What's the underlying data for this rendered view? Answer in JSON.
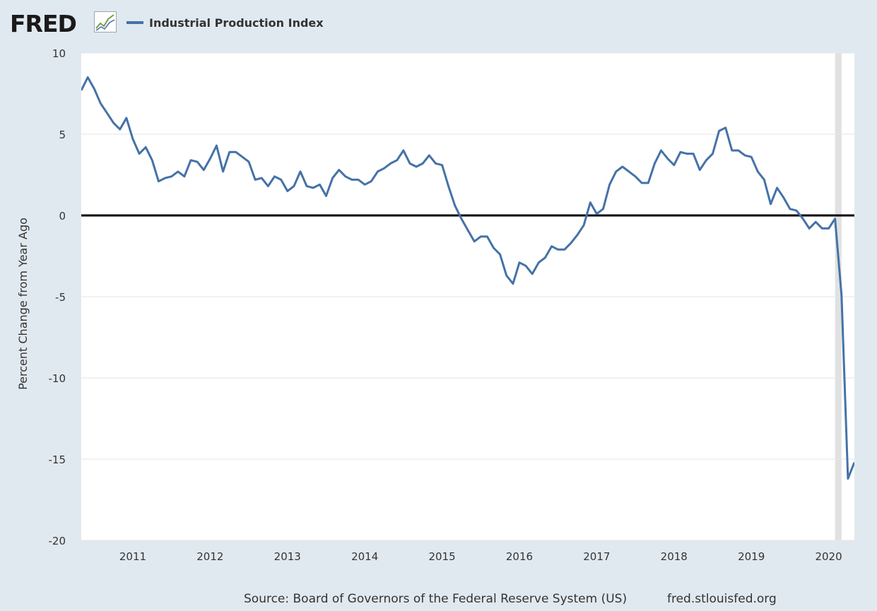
{
  "header": {
    "logo_text": "FRED",
    "legend_label": "Industrial Production Index"
  },
  "footer": {
    "source": "Source: Board of Governors of the Federal Reserve System (US)",
    "site": "fred.stlouisfed.org"
  },
  "colors": {
    "series": "#4572a7",
    "background": "#e1e9f0",
    "plot": "#ffffff",
    "recession": "#e1e1e1",
    "zero_line": "#000000"
  },
  "chart_data": {
    "type": "line",
    "title": "",
    "xlabel": "",
    "ylabel": "Percent Change from Year Ago",
    "ylim": [
      -20,
      10
    ],
    "xlim": [
      2010.333,
      2020.333
    ],
    "yticks": [
      "10",
      "5",
      "0",
      "-5",
      "-10",
      "-15",
      "-20"
    ],
    "ytick_values": [
      10,
      5,
      0,
      -5,
      -10,
      -15,
      -20
    ],
    "xticks": [
      "2011",
      "2012",
      "2013",
      "2014",
      "2015",
      "2016",
      "2017",
      "2018",
      "2019",
      "2020"
    ],
    "xtick_values": [
      2011,
      2012,
      2013,
      2014,
      2015,
      2016,
      2017,
      2018,
      2019,
      2020
    ],
    "grid": true,
    "reference_line": 0,
    "recession_shading": [
      2020.083,
      2020.167
    ],
    "series": [
      {
        "name": "Industrial Production Index",
        "x": [
          2010.333,
          2010.417,
          2010.5,
          2010.583,
          2010.667,
          2010.75,
          2010.833,
          2010.917,
          2011.0,
          2011.083,
          2011.167,
          2011.25,
          2011.333,
          2011.417,
          2011.5,
          2011.583,
          2011.667,
          2011.75,
          2011.833,
          2011.917,
          2012.0,
          2012.083,
          2012.167,
          2012.25,
          2012.333,
          2012.417,
          2012.5,
          2012.583,
          2012.667,
          2012.75,
          2012.833,
          2012.917,
          2013.0,
          2013.083,
          2013.167,
          2013.25,
          2013.333,
          2013.417,
          2013.5,
          2013.583,
          2013.667,
          2013.75,
          2013.833,
          2013.917,
          2014.0,
          2014.083,
          2014.167,
          2014.25,
          2014.333,
          2014.417,
          2014.5,
          2014.583,
          2014.667,
          2014.75,
          2014.833,
          2014.917,
          2015.0,
          2015.083,
          2015.167,
          2015.25,
          2015.333,
          2015.417,
          2015.5,
          2015.583,
          2015.667,
          2015.75,
          2015.833,
          2015.917,
          2016.0,
          2016.083,
          2016.167,
          2016.25,
          2016.333,
          2016.417,
          2016.5,
          2016.583,
          2016.667,
          2016.75,
          2016.833,
          2016.917,
          2017.0,
          2017.083,
          2017.167,
          2017.25,
          2017.333,
          2017.417,
          2017.5,
          2017.583,
          2017.667,
          2017.75,
          2017.833,
          2017.917,
          2018.0,
          2018.083,
          2018.167,
          2018.25,
          2018.333,
          2018.417,
          2018.5,
          2018.583,
          2018.667,
          2018.75,
          2018.833,
          2018.917,
          2019.0,
          2019.083,
          2019.167,
          2019.25,
          2019.333,
          2019.417,
          2019.5,
          2019.583,
          2019.667,
          2019.75,
          2019.833,
          2019.917,
          2020.0,
          2020.083,
          2020.167,
          2020.25,
          2020.333
        ],
        "values": [
          7.7,
          8.5,
          7.8,
          6.9,
          6.3,
          5.7,
          5.3,
          6.0,
          4.7,
          3.8,
          4.2,
          3.4,
          2.1,
          2.3,
          2.4,
          2.7,
          2.4,
          3.4,
          3.3,
          2.8,
          3.5,
          4.3,
          2.7,
          3.9,
          3.9,
          3.6,
          3.3,
          2.2,
          2.3,
          1.8,
          2.4,
          2.2,
          1.5,
          1.8,
          2.7,
          1.8,
          1.7,
          1.9,
          1.2,
          2.3,
          2.8,
          2.4,
          2.2,
          2.2,
          1.9,
          2.1,
          2.7,
          2.9,
          3.2,
          3.4,
          4.0,
          3.2,
          3.0,
          3.2,
          3.7,
          3.2,
          3.1,
          1.8,
          0.6,
          -0.2,
          -0.9,
          -1.6,
          -1.3,
          -1.3,
          -2.0,
          -2.4,
          -3.7,
          -4.2,
          -2.9,
          -3.1,
          -3.6,
          -2.9,
          -2.6,
          -1.9,
          -2.1,
          -2.1,
          -1.7,
          -1.2,
          -0.6,
          0.8,
          0.1,
          0.4,
          1.9,
          2.7,
          3.0,
          2.7,
          2.4,
          2.0,
          2.0,
          3.2,
          4.0,
          3.5,
          3.1,
          3.9,
          3.8,
          3.8,
          2.8,
          3.4,
          3.8,
          5.2,
          5.4,
          4.0,
          4.0,
          3.7,
          3.6,
          2.7,
          2.2,
          0.7,
          1.7,
          1.1,
          0.4,
          0.3,
          -0.2,
          -0.8,
          -0.4,
          -0.8,
          -0.8,
          -0.2,
          -4.9,
          -16.2,
          -15.2
        ]
      }
    ]
  }
}
